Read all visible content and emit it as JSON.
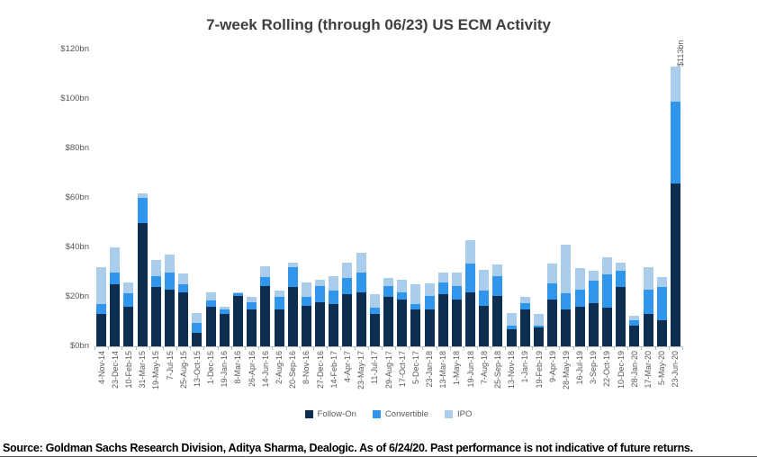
{
  "chart": {
    "title": "7-week Rolling (through 06/23) US ECM Activity"
  },
  "footer": {
    "source": "Source: Goldman Sachs Research Division, Aditya Sharma, Dealogic. As of 6/24/20. Past performance is not indicative of future returns."
  },
  "chart_data": {
    "type": "bar",
    "stacked": true,
    "title": "7-week Rolling (through 06/23) US ECM Activity",
    "unit": "$bn",
    "grid": false,
    "legend_position": "bottom",
    "ylim": [
      0,
      120
    ],
    "y_ticks": [
      "$0bn",
      "$20bn",
      "$40bn",
      "$60bn",
      "$80bn",
      "$100bn",
      "$120bn"
    ],
    "categories": [
      "4-Nov-14",
      "23-Dec-14",
      "10-Feb-15",
      "31-Mar-15",
      "19-May-15",
      "7-Jul-15",
      "25-Aug-15",
      "13-Oct-15",
      "1-Dec-15",
      "19-Jan-16",
      "8-Mar-16",
      "26-Apr-16",
      "14-Jun-16",
      "2-Aug-16",
      "20-Sep-16",
      "8-Nov-16",
      "27-Dec-16",
      "14-Feb-17",
      "4-Apr-17",
      "23-May-17",
      "11-Jul-17",
      "29-Aug-17",
      "17-Oct-17",
      "5-Dec-17",
      "23-Jan-18",
      "13-Mar-18",
      "1-May-18",
      "19-Jun-18",
      "7-Aug-18",
      "25-Sep-18",
      "13-Nov-18",
      "1-Jan-19",
      "19-Feb-19",
      "9-Apr-19",
      "28-May-19",
      "16-Jul-19",
      "3-Sep-19",
      "22-Oct-19",
      "10-Dec-19",
      "28-Jan-20",
      "17-Mar-20",
      "5-May-20",
      "23-Jun-20"
    ],
    "series": [
      {
        "name": "Follow-On",
        "color": "#0d2e51",
        "values": [
          13,
          25,
          16,
          50,
          24,
          23,
          22,
          5.5,
          16,
          13,
          20.5,
          15,
          24.5,
          15,
          24,
          16.5,
          18,
          17,
          21,
          22,
          13,
          20,
          19,
          15,
          15,
          21,
          19,
          22,
          16.5,
          20.5,
          7,
          15,
          7.5,
          19,
          15,
          16,
          17.5,
          15.5,
          24,
          8.5,
          13,
          10.5,
          66
        ]
      },
      {
        "name": "Convertible",
        "color": "#2f96ec",
        "values": [
          4,
          5,
          5.5,
          10,
          4.5,
          7,
          3,
          4,
          2.5,
          2,
          1,
          3,
          3.5,
          5,
          8,
          3.5,
          6.5,
          5.5,
          6.5,
          8,
          2.5,
          4.5,
          3,
          2,
          5.5,
          5,
          5.5,
          11.5,
          6,
          8,
          1.5,
          2.5,
          1,
          6.5,
          6.5,
          7,
          9,
          13.5,
          6.5,
          2,
          10,
          13.5,
          33
        ]
      },
      {
        "name": "IPO",
        "color": "#a9cdea",
        "values": [
          15,
          10,
          4.5,
          2,
          6.5,
          7,
          4.5,
          4,
          3.5,
          1,
          0.5,
          2,
          4.5,
          2.5,
          2,
          6,
          2.5,
          6,
          6.5,
          8,
          5.5,
          3,
          5,
          8,
          5,
          4,
          5.5,
          9.5,
          8.5,
          4.5,
          5,
          2.5,
          4.5,
          8,
          19.5,
          8.5,
          4,
          7,
          3.5,
          2,
          9,
          4,
          14
        ]
      }
    ],
    "annotations": [
      {
        "text": "$113bn",
        "category": "23-Jun-20",
        "position": "above-bar"
      }
    ],
    "axis_colors": {
      "line": "#bfbfbf",
      "label": "#595959",
      "title": "#3f3f3f"
    }
  }
}
